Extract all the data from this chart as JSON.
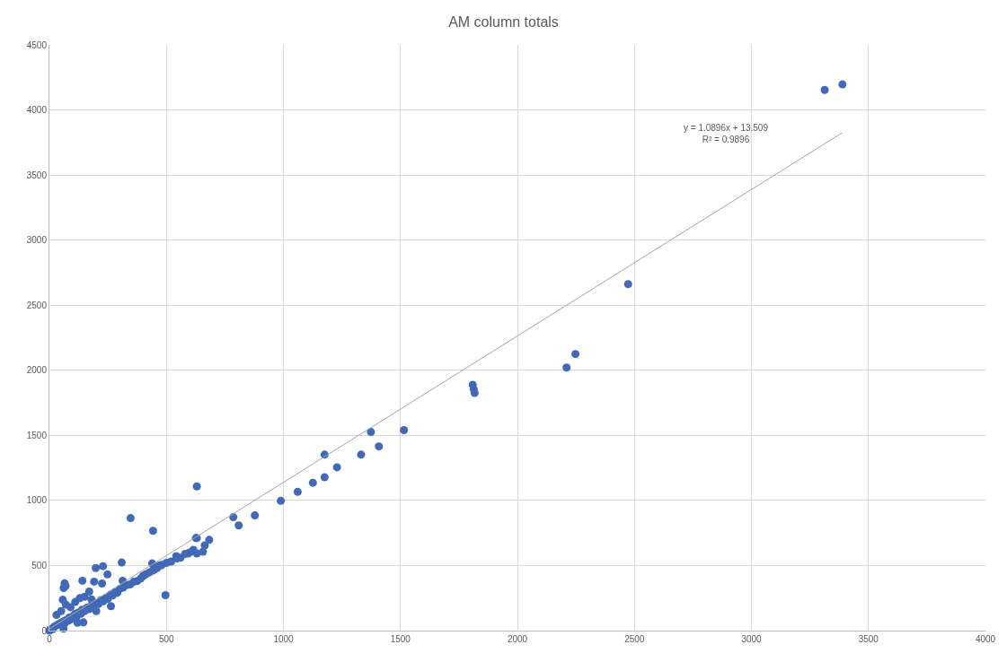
{
  "chart_data": {
    "type": "scatter",
    "title": "AM column totals",
    "xlim": [
      0,
      4000
    ],
    "ylim": [
      0,
      4500
    ],
    "xticks": [
      0,
      500,
      1000,
      1500,
      2000,
      2500,
      3000,
      3500,
      4000
    ],
    "yticks": [
      0,
      500,
      1000,
      1500,
      2000,
      2500,
      3000,
      3500,
      4000,
      4500
    ],
    "grid": true,
    "marker": "circle",
    "annotations": [
      "y = 1.0896x + 13.509\nR² = 0.9896"
    ],
    "series": [
      {
        "color": "#4169b8",
        "x": [
          0,
          5,
          15,
          20,
          30,
          40,
          50,
          60,
          65,
          70,
          80,
          85,
          90,
          100,
          105,
          110,
          120,
          125,
          135,
          140,
          150,
          160,
          170,
          180,
          200,
          210,
          220,
          230,
          240,
          250,
          260,
          270,
          280,
          290,
          300,
          315,
          330,
          345,
          360,
          375,
          390,
          400,
          410,
          425,
          440,
          450,
          460,
          470,
          480,
          500,
          520,
          545,
          560,
          580,
          600,
          615,
          30,
          50,
          70,
          90,
          110,
          130,
          150,
          170,
          180,
          120,
          145,
          60,
          200,
          57,
          61,
          65,
          69,
          141,
          191,
          198,
          225,
          229,
          248,
          263,
          309,
          313,
          347,
          443,
          496,
          477,
          439,
          542,
          592,
          626,
          630,
          630,
          664,
          683,
          656,
          630,
          786,
          809,
          878,
          989,
          1061,
          1126,
          1176,
          1229,
          1176,
          1332,
          1408,
          1374,
          1515,
          1809,
          1817,
          1813,
          2210,
          2248,
          2473,
          3313,
          3389
        ],
        "values": [
          0,
          10,
          12,
          30,
          40,
          50,
          60,
          70,
          55,
          80,
          75,
          100,
          85,
          110,
          95,
          130,
          115,
          140,
          130,
          160,
          150,
          175,
          165,
          195,
          210,
          205,
          235,
          225,
          250,
          245,
          275,
          270,
          295,
          290,
          320,
          330,
          350,
          355,
          375,
          380,
          400,
          420,
          430,
          445,
          460,
          470,
          480,
          500,
          505,
          520,
          530,
          555,
          560,
          590,
          600,
          620,
          120,
          150,
          200,
          180,
          220,
          250,
          260,
          300,
          240,
          60,
          63,
          15,
          150,
          237,
          327,
          363,
          342,
          383,
          376,
          481,
          362,
          495,
          432,
          188,
          523,
          383,
          864,
          767,
          272,
          502,
          516,
          572,
          592,
          711,
          711,
          592,
          655,
          697,
          606,
          1108,
          871,
          808,
          885,
          997,
          1066,
          1136,
          1178,
          1255,
          1352,
          1352,
          1415,
          1526,
          1540,
          1889,
          1826,
          1855,
          2021,
          2125,
          2662,
          4154,
          4196
        ]
      },
      {
        "type": "line",
        "color": "#a6a6a6",
        "marker": "none",
        "x": [
          0,
          3389
        ],
        "values": [
          14,
          3826
        ]
      }
    ]
  }
}
